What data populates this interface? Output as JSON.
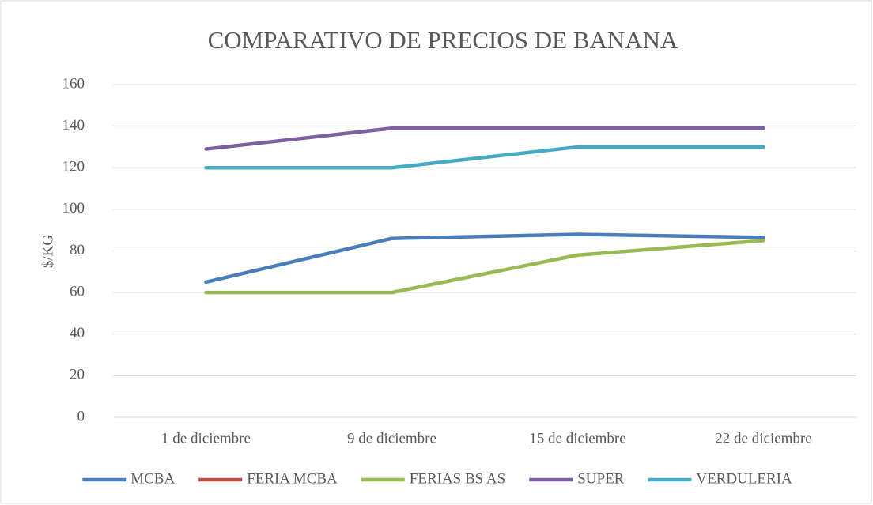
{
  "chart_data": {
    "type": "line",
    "title": "COMPARATIVO DE PRECIOS DE BANANA",
    "y_label": "$/KG",
    "categories": [
      "1 de diciembre",
      "9 de diciembre",
      "15 de diciembre",
      "22 de diciembre"
    ],
    "series": [
      {
        "name": "MCBA",
        "color": "#4a7ebb",
        "values": [
          65,
          86,
          88,
          86.5
        ]
      },
      {
        "name": "FERIA MCBA",
        "color": "#be4b48",
        "values": [
          null,
          null,
          null,
          null
        ]
      },
      {
        "name": "FERIAS BS AS",
        "color": "#98b954",
        "values": [
          60,
          60,
          78,
          85
        ]
      },
      {
        "name": "SUPER",
        "color": "#7d60a0",
        "values": [
          129,
          139,
          139,
          139
        ]
      },
      {
        "name": "VERDULERIA",
        "color": "#46aac5",
        "values": [
          120,
          120,
          130,
          130
        ]
      }
    ],
    "ylim": [
      0,
      160
    ],
    "yticks": [
      0,
      20,
      40,
      60,
      80,
      100,
      120,
      140,
      160
    ],
    "grid": true,
    "legend": "bottom"
  }
}
